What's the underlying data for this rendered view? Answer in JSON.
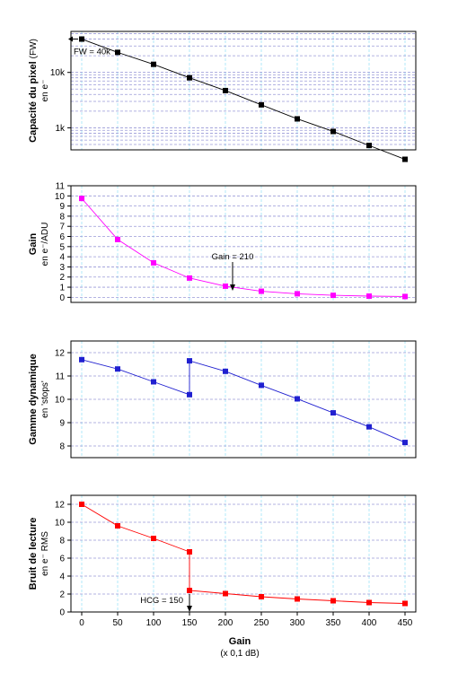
{
  "x_axis": {
    "label": "Gain",
    "sublabel": "(x 0,1 dB)",
    "ticks": [
      0,
      50,
      100,
      150,
      200,
      250,
      300,
      350,
      400,
      450
    ],
    "range": [
      -15,
      465
    ]
  },
  "colors": {
    "black": "#000000",
    "magenta": "#ff00ff",
    "blue": "#2020d0",
    "red": "#ff0000",
    "grid_v": "#b0e8f8",
    "grid_h": "#9a9ad8"
  },
  "chart_data": [
    {
      "type": "line",
      "scale": "log",
      "ylabel": "Capacité du pixel",
      "ylabel_suffix": "(FW)",
      "yunit": "en e⁻",
      "ylim": [
        400,
        55000
      ],
      "yticks": [
        1000,
        10000
      ],
      "ytick_labels": [
        "1k",
        "10k"
      ],
      "grid": true,
      "series": [
        {
          "color": "#000000",
          "x": [
            0,
            50,
            100,
            150,
            200,
            250,
            300,
            350,
            400,
            450
          ],
          "y": [
            40000,
            23000,
            14000,
            8000,
            4700,
            2600,
            1450,
            860,
            480,
            270
          ]
        }
      ],
      "annotation": {
        "text": "FW = 40k",
        "x": 0,
        "y": 40000
      }
    },
    {
      "type": "line",
      "scale": "linear",
      "ylabel": "Gain",
      "yunit": "en e⁻/ADU",
      "ylim": [
        -0.5,
        11
      ],
      "yticks": [
        0,
        1,
        2,
        3,
        4,
        5,
        6,
        7,
        8,
        9,
        10,
        11
      ],
      "grid": true,
      "series": [
        {
          "color": "#ff00ff",
          "x": [
            0,
            50,
            100,
            150,
            200,
            250,
            300,
            350,
            400,
            450
          ],
          "y": [
            9.75,
            5.7,
            3.4,
            1.9,
            1.1,
            0.6,
            0.35,
            0.2,
            0.12,
            0.08
          ]
        }
      ],
      "annotation": {
        "text": "Gain = 210",
        "x": 210,
        "y": 0.9
      }
    },
    {
      "type": "line",
      "scale": "linear",
      "ylabel": "Gamme dynamique",
      "yunit": "en 'stops'",
      "ylim": [
        7.5,
        12.5
      ],
      "yticks": [
        8,
        9,
        10,
        11,
        12
      ],
      "grid": true,
      "series": [
        {
          "color": "#2020d0",
          "x": [
            0,
            50,
            100,
            150,
            150,
            200,
            250,
            300,
            350,
            400,
            450
          ],
          "y": [
            11.7,
            11.3,
            10.75,
            10.2,
            11.65,
            11.2,
            10.6,
            10.02,
            9.42,
            8.82,
            8.15
          ]
        }
      ]
    },
    {
      "type": "line",
      "scale": "linear",
      "ylabel": "Bruit de lecture",
      "yunit": "en e⁻ RMS",
      "ylim": [
        0,
        13
      ],
      "yticks": [
        0,
        2,
        4,
        6,
        8,
        10,
        12
      ],
      "grid": true,
      "series": [
        {
          "color": "#ff0000",
          "x": [
            0,
            50,
            100,
            150,
            150,
            200,
            250,
            300,
            350,
            400,
            450
          ],
          "y": [
            12.0,
            9.6,
            8.2,
            6.7,
            2.4,
            2.05,
            1.7,
            1.45,
            1.25,
            1.05,
            0.95
          ]
        }
      ],
      "annotation": {
        "text": "HCG = 150",
        "x": 150,
        "y": 0
      }
    }
  ]
}
